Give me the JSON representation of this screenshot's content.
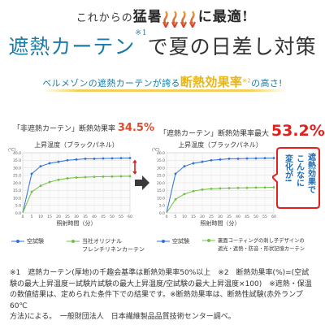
{
  "header": {
    "pre": "これからの",
    "kw1": "猛暑",
    "post": "に最適",
    "excl": "!"
  },
  "headline": {
    "part1": "遮熱カーテン",
    "note": "※1",
    "part2": "で夏の日差し対策"
  },
  "subhead": {
    "prefix": "ベルメゾンの遮熱カーテンが誇る",
    "highlight": "断熱効果率",
    "note": "※2",
    "suffix": "の高さ!"
  },
  "left_panel": {
    "label_prefix": "「非遮熱カーテン」断熱効果率",
    "percent": "34.5%",
    "legend_a": "空試験",
    "legend_b1": "当社オリジナル",
    "legend_b2": "フレンチリネンカーテン"
  },
  "right_panel": {
    "label_prefix": "「遮熱カーテン」断熱効果率最大",
    "percent": "53.2%",
    "legend_a": "空試験",
    "legend_b1": "裏面コーティングの刺し子デザインの",
    "legend_b2": "遮光・遮熱・防音・形状記憶カーテン",
    "bubble": [
      "遮熱効果で",
      "こんなに",
      "変化が!"
    ]
  },
  "colors": {
    "blue": "#1a7ca6",
    "series_blue": "#2f6fd6",
    "series_green": "#72c043",
    "red": "#e2201c",
    "gold": "#e8b614"
  },
  "chart_data": [
    {
      "type": "line",
      "title": "上昇温度（ブラックパネル）",
      "xlabel": "照射時間（分）",
      "ylabel": "(℃)",
      "x": [
        0,
        5,
        10,
        15,
        20,
        25,
        30,
        35,
        40,
        45,
        50,
        55,
        60
      ],
      "xlim": [
        0,
        60
      ],
      "ylim": [
        0,
        40
      ],
      "yticks": [
        0,
        5,
        10,
        15,
        20,
        25,
        30,
        35,
        40
      ],
      "xticks": [
        0,
        5,
        10,
        15,
        20,
        25,
        30,
        35,
        40,
        45,
        50,
        55,
        60
      ],
      "series": [
        {
          "name": "空試験",
          "values": [
            0,
            26,
            31,
            33,
            34,
            35,
            35.5,
            36,
            36,
            36.2,
            36.3,
            36.4,
            36.5
          ]
        },
        {
          "name": "当社オリジナル フレンチリネンカーテン",
          "values": [
            0,
            14,
            18,
            20.5,
            22,
            23,
            23.5,
            23.8,
            24,
            24.1,
            24.2,
            24.3,
            24.4
          ]
        }
      ]
    },
    {
      "type": "line",
      "title": "上昇温度（ブラックパネル）",
      "xlabel": "照射時間（分）",
      "ylabel": "(℃)",
      "x": [
        0,
        5,
        10,
        15,
        20,
        25,
        30,
        35,
        40,
        45,
        50,
        55,
        60
      ],
      "xlim": [
        0,
        60
      ],
      "ylim": [
        0,
        40
      ],
      "yticks": [
        0,
        5,
        10,
        15,
        20,
        25,
        30,
        35,
        40
      ],
      "xticks": [
        0,
        5,
        10,
        15,
        20,
        25,
        30,
        35,
        40,
        45,
        50,
        55,
        60
      ],
      "series": [
        {
          "name": "空試験",
          "values": [
            0,
            26,
            31,
            33,
            34,
            35,
            35.5,
            36,
            36,
            36.2,
            36.3,
            36.4,
            36.5
          ]
        },
        {
          "name": "裏面コーティングの刺し子デザインの遮光・遮熱・防音・形状記憶カーテン",
          "values": [
            0,
            9,
            12.5,
            14.5,
            15.5,
            16,
            16.3,
            16.5,
            16.6,
            16.7,
            16.8,
            16.9,
            17
          ]
        }
      ]
    }
  ],
  "footnotes": [
    "※1　遮熱カーテン(厚地)の千趣会基準は断熱効果率50%以上　※2　断熱効果率(%)=(空試",
    "験の最大上昇温度ー試験片試験の最大上昇温度/空試験の最大上昇温度×100)　※遮熱・保温",
    "の数値結果は、定められた条件下での結果です。※断熱効果率は、断熱性試験(赤外ランプ60℃",
    "方法)による。　一般財団法人　日本繊維製品品質技術センター調べ。"
  ]
}
